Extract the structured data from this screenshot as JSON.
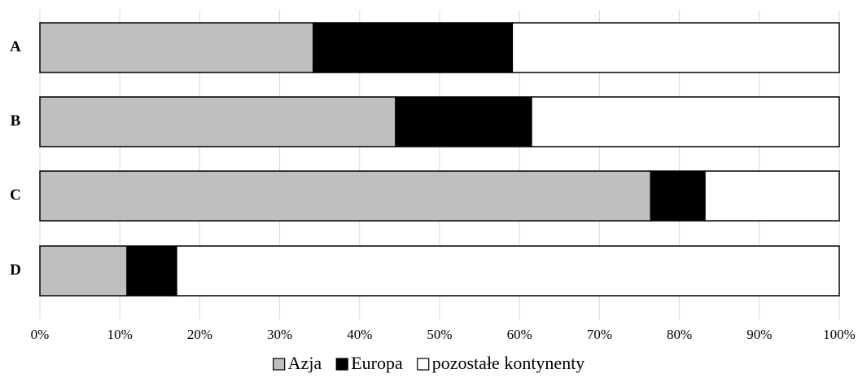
{
  "chart_data": {
    "type": "bar",
    "orientation": "horizontal",
    "stacked": "percent",
    "categories": [
      "A",
      "B",
      "C",
      "D"
    ],
    "series": [
      {
        "name": "Azja",
        "values": [
          34.2,
          44.5,
          76.4,
          10.9
        ],
        "color": "#bfbfbf"
      },
      {
        "name": "Europa",
        "values": [
          24.9,
          17.0,
          6.8,
          6.2
        ],
        "color": "#000000"
      },
      {
        "name": "pozostałe kontynenty",
        "values": [
          40.9,
          38.5,
          16.8,
          82.9
        ],
        "color": "#ffffff"
      }
    ],
    "xlim": [
      0,
      100
    ],
    "x_ticks": [
      "0%",
      "10%",
      "20%",
      "30%",
      "40%",
      "50%",
      "60%",
      "70%",
      "80%",
      "90%",
      "100%"
    ],
    "grid": "vertical",
    "legend_position": "bottom",
    "title": "",
    "xlabel": "",
    "ylabel": ""
  }
}
